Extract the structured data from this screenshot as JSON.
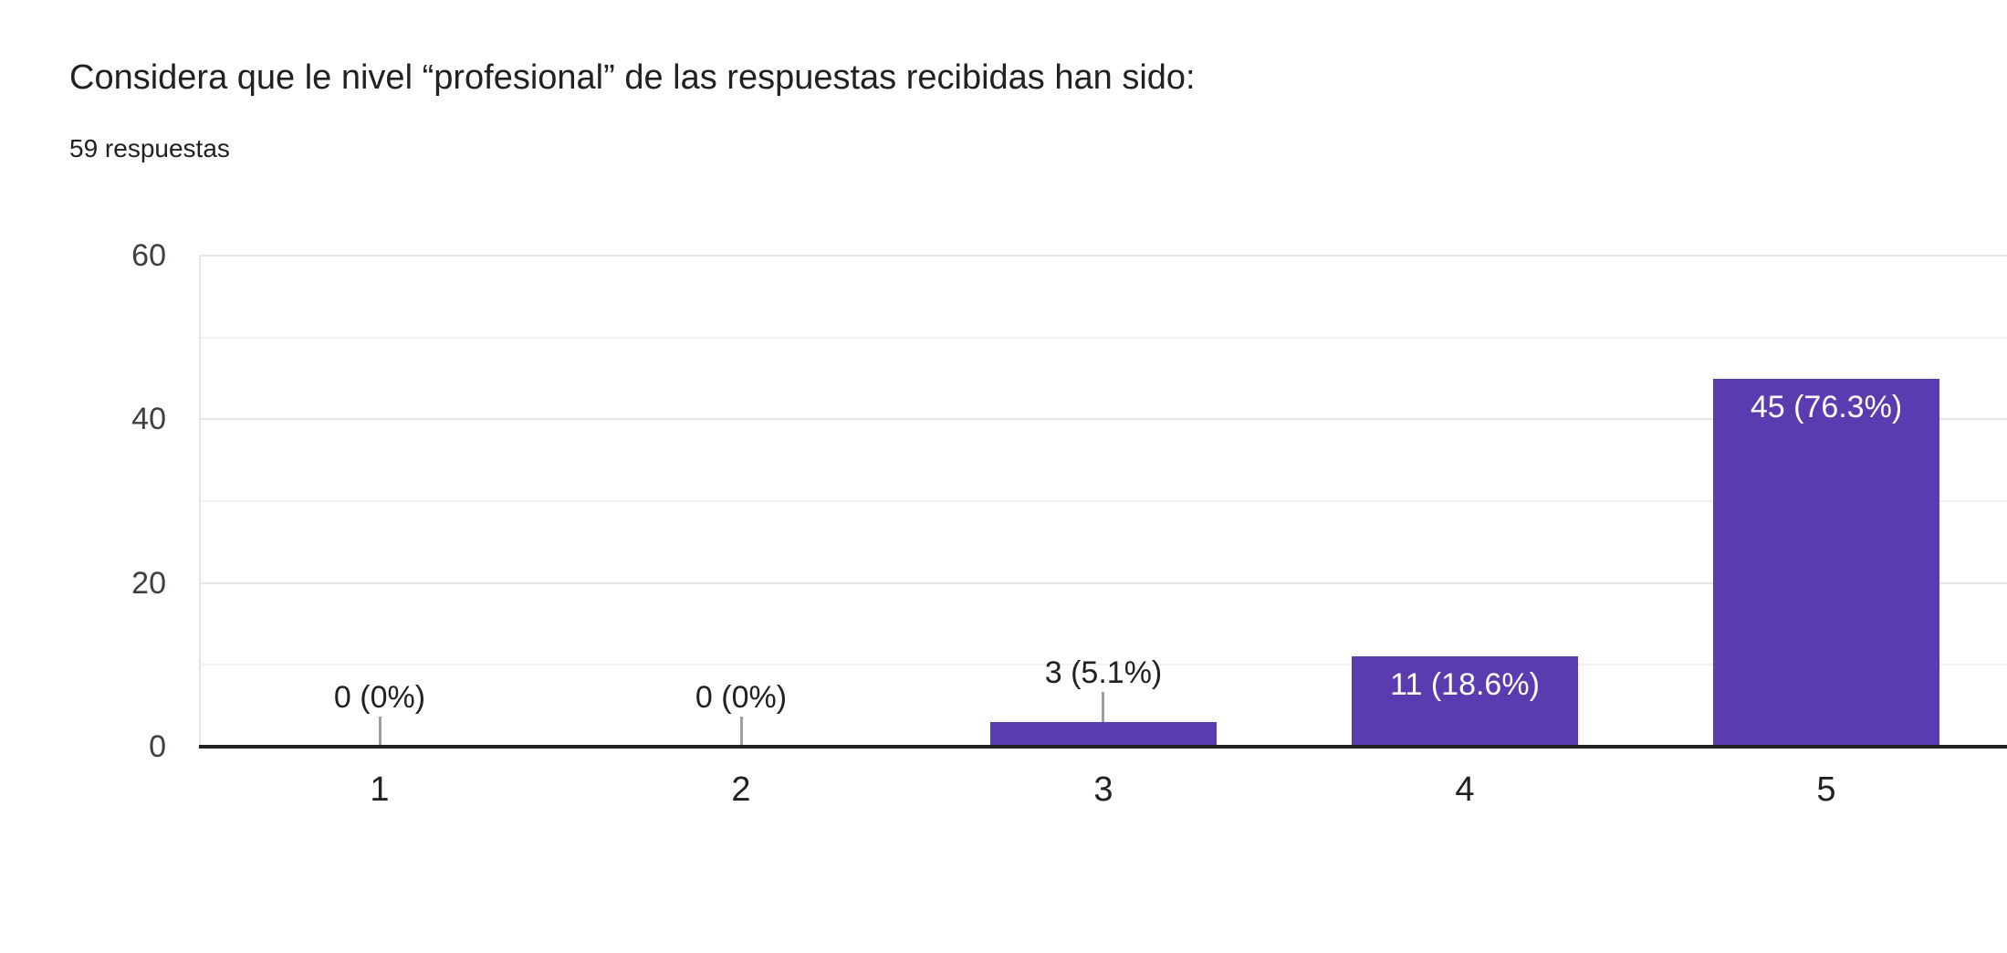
{
  "header": {
    "title": "Considera que le nivel “profesional” de las respuestas recibidas han sido:",
    "subtitle": "59 respuestas"
  },
  "chart_data": {
    "type": "bar",
    "title": "Considera que le nivel “profesional” de las respuestas recibidas han sido:",
    "subtitle": "59 respuestas",
    "response_count": 59,
    "categories": [
      "1",
      "2",
      "3",
      "4",
      "5"
    ],
    "values": [
      0,
      0,
      3,
      11,
      45
    ],
    "bar_labels": [
      "0 (0%)",
      "0 (0%)",
      "3 (5.1%)",
      "11 (18.6%)",
      "45 (76.3%)"
    ],
    "bar_label_positions": [
      "above",
      "above",
      "above",
      "inside",
      "inside"
    ],
    "xlabel": "",
    "ylabel": "",
    "ylim": [
      0,
      60
    ],
    "yticks": [
      0,
      20,
      40,
      60
    ],
    "grid_step": 10,
    "grid": true,
    "legend": false,
    "colors": {
      "bar": "#5b3cb0",
      "label_inside": "#ffffff",
      "label_above": "#212121",
      "stem": "#9e9e9e",
      "axis_line": "#212121",
      "grid_major": "#e6e6e6",
      "grid_minor": "#f2f2f2",
      "y_tick_text": "#3c4043"
    }
  }
}
